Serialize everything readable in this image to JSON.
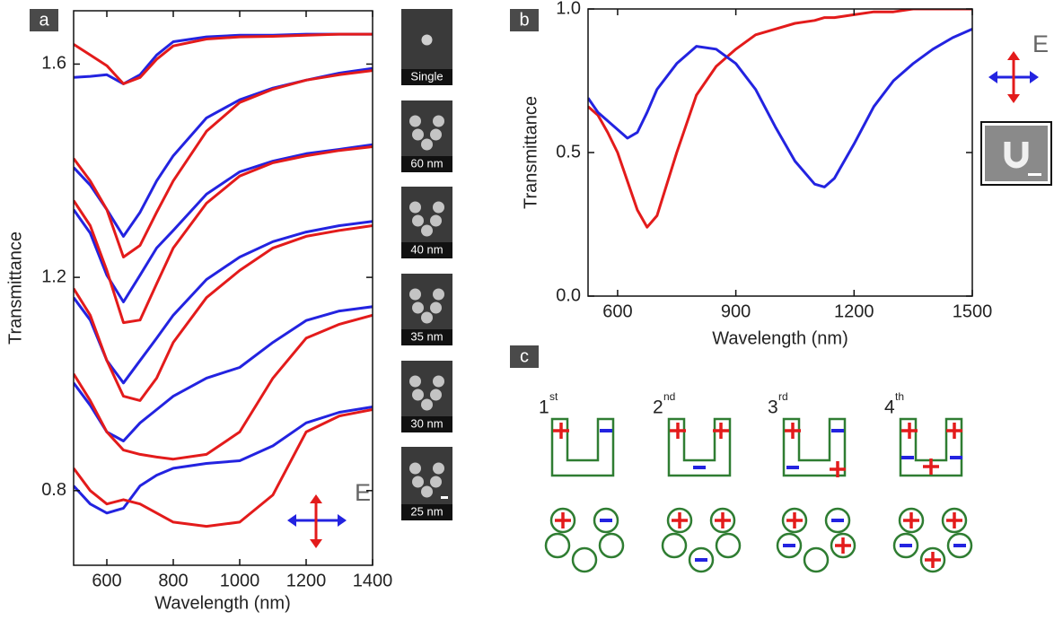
{
  "panel_labels": [
    "a",
    "b",
    "c"
  ],
  "chart_data": [
    {
      "type": "line",
      "xlabel": "Wavelength (nm)",
      "ylabel": "Transmittance",
      "polarization_label": "E",
      "x": [
        500,
        550,
        600,
        650,
        700,
        750,
        800,
        900,
        1000,
        1100,
        1200,
        1300,
        1400
      ],
      "xlim": [
        500,
        1400
      ],
      "ylim": [
        0.66,
        1.7
      ],
      "xticks": [
        600,
        800,
        1000,
        1200,
        1400
      ],
      "yticks": [
        0.8,
        1.2,
        1.6
      ],
      "series": [
        {
          "color": "#2323e0",
          "values": [
            1.575,
            1.577,
            1.58,
            1.563,
            1.58,
            1.617,
            1.642,
            1.651,
            1.654,
            1.654,
            1.656,
            1.656,
            1.656
          ]
        },
        {
          "color": "#e31b1b",
          "values": [
            1.637,
            1.617,
            1.597,
            1.563,
            1.575,
            1.609,
            1.634,
            1.647,
            1.651,
            1.652,
            1.654,
            1.656,
            1.656
          ]
        },
        {
          "color": "#2323e0",
          "values": [
            1.406,
            1.373,
            1.327,
            1.277,
            1.322,
            1.381,
            1.428,
            1.499,
            1.533,
            1.555,
            1.57,
            1.583,
            1.592
          ]
        },
        {
          "color": "#e31b1b",
          "values": [
            1.423,
            1.381,
            1.327,
            1.238,
            1.26,
            1.322,
            1.381,
            1.474,
            1.528,
            1.553,
            1.57,
            1.58,
            1.588
          ]
        },
        {
          "color": "#2323e0",
          "values": [
            1.327,
            1.283,
            1.204,
            1.154,
            1.204,
            1.255,
            1.288,
            1.356,
            1.398,
            1.418,
            1.432,
            1.44,
            1.449
          ]
        },
        {
          "color": "#e31b1b",
          "values": [
            1.344,
            1.297,
            1.213,
            1.115,
            1.12,
            1.188,
            1.255,
            1.339,
            1.39,
            1.415,
            1.428,
            1.438,
            1.445
          ]
        },
        {
          "color": "#2323e0",
          "values": [
            1.162,
            1.12,
            1.044,
            1.002,
            1.044,
            1.086,
            1.129,
            1.196,
            1.238,
            1.267,
            1.285,
            1.297,
            1.305
          ]
        },
        {
          "color": "#e31b1b",
          "values": [
            1.179,
            1.129,
            1.044,
            0.977,
            0.969,
            1.011,
            1.078,
            1.162,
            1.213,
            1.255,
            1.277,
            1.288,
            1.297
          ]
        },
        {
          "color": "#2323e0",
          "values": [
            1.002,
            0.96,
            0.91,
            0.893,
            0.927,
            0.952,
            0.977,
            1.011,
            1.031,
            1.078,
            1.119,
            1.137,
            1.145
          ]
        },
        {
          "color": "#e31b1b",
          "values": [
            1.019,
            0.969,
            0.91,
            0.876,
            0.868,
            0.863,
            0.859,
            0.868,
            0.91,
            1.011,
            1.086,
            1.112,
            1.129
          ]
        },
        {
          "color": "#2323e0",
          "values": [
            0.809,
            0.775,
            0.758,
            0.767,
            0.809,
            0.829,
            0.842,
            0.851,
            0.856,
            0.884,
            0.927,
            0.947,
            0.957
          ]
        },
        {
          "color": "#e31b1b",
          "values": [
            0.842,
            0.8,
            0.775,
            0.783,
            0.775,
            0.758,
            0.741,
            0.733,
            0.741,
            0.792,
            0.91,
            0.94,
            0.952
          ]
        }
      ]
    },
    {
      "type": "line",
      "xlabel": "Wavelength (nm)",
      "ylabel": "Transmittance",
      "polarization_label": "E",
      "x": [
        525,
        550,
        575,
        600,
        625,
        650,
        675,
        700,
        750,
        800,
        850,
        900,
        950,
        1000,
        1050,
        1100,
        1125,
        1150,
        1200,
        1250,
        1300,
        1350,
        1400,
        1450,
        1500
      ],
      "xlim": [
        525,
        1500
      ],
      "ylim": [
        0,
        1
      ],
      "xticks": [
        600,
        900,
        1200,
        1500
      ],
      "yticks": [
        {
          "value": 0,
          "label": "0.0"
        },
        0.5,
        {
          "value": 1,
          "label": "1.0"
        }
      ],
      "series": [
        {
          "color": "#e31b1b",
          "values": [
            0.66,
            0.63,
            0.57,
            0.5,
            0.4,
            0.3,
            0.24,
            0.28,
            0.5,
            0.7,
            0.8,
            0.86,
            0.91,
            0.93,
            0.95,
            0.96,
            0.97,
            0.97,
            0.98,
            0.99,
            0.99,
            1.0,
            1.0,
            1.0,
            1.0
          ]
        },
        {
          "color": "#2323e0",
          "values": [
            0.69,
            0.64,
            0.61,
            0.58,
            0.55,
            0.57,
            0.64,
            0.72,
            0.81,
            0.87,
            0.86,
            0.81,
            0.72,
            0.59,
            0.47,
            0.39,
            0.38,
            0.41,
            0.53,
            0.66,
            0.75,
            0.81,
            0.86,
            0.9,
            0.93
          ]
        }
      ]
    }
  ],
  "inset_labels": [
    "Single",
    "60 nm",
    "40 nm",
    "35 nm",
    "30 nm",
    "25 nm"
  ],
  "modes": [
    {
      "order": "1",
      "suffix": "st"
    },
    {
      "order": "2",
      "suffix": "nd"
    },
    {
      "order": "3",
      "suffix": "rd"
    },
    {
      "order": "4",
      "suffix": "th"
    }
  ]
}
